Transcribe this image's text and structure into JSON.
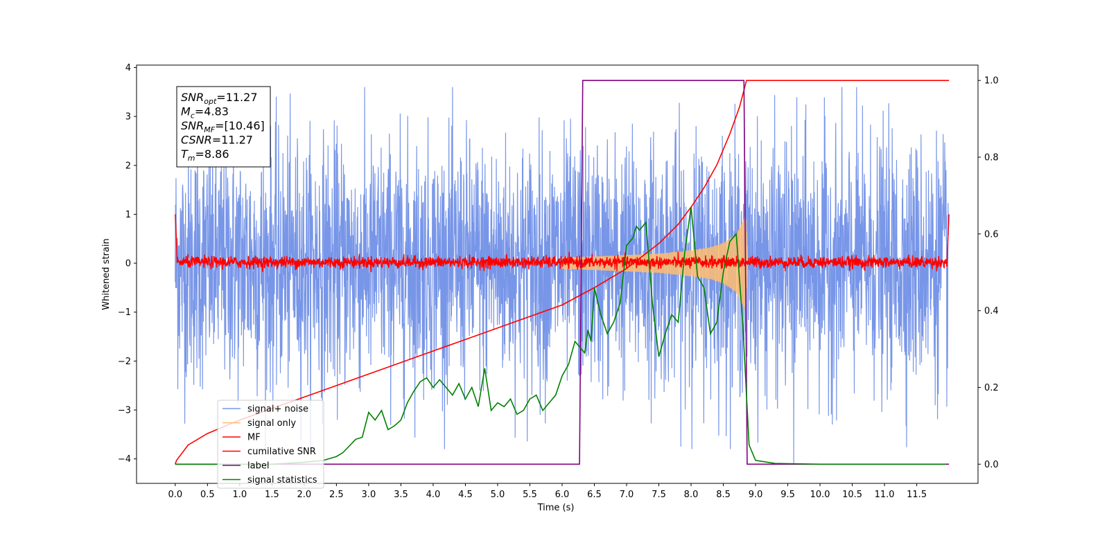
{
  "chart_data": {
    "type": "line",
    "xlabel": "Time (s)",
    "ylabel": "Whitened strain",
    "xlim": [
      -0.6,
      12.45
    ],
    "ylim": [
      -4.5,
      4.05
    ],
    "y2lim": [
      -0.05,
      1.04
    ],
    "x_ticks": [
      0.0,
      0.5,
      1.0,
      1.5,
      2.0,
      2.5,
      3.0,
      3.5,
      4.0,
      4.5,
      5.0,
      5.5,
      6.0,
      6.5,
      7.0,
      7.5,
      8.0,
      8.5,
      9.0,
      9.5,
      10.0,
      10.5,
      11.0,
      11.5
    ],
    "x_tick_labels": [
      "0.0",
      "0.5",
      "1.0",
      "1.5",
      "2.0",
      "2.5",
      "3.0",
      "3.5",
      "4.0",
      "4.5",
      "5.0",
      "5.5",
      "6.0",
      "6.5",
      "7.0",
      "7.5",
      "8.0",
      "8.5",
      "9.0",
      "9.5",
      "10.0",
      "10.5",
      "11.0",
      "11.5"
    ],
    "y_ticks": [
      4,
      3,
      2,
      1,
      0,
      -1,
      -2,
      -3,
      -4
    ],
    "y_tick_labels": [
      "4",
      "3",
      "2",
      "1",
      "0",
      "−1",
      "−2",
      "−3",
      "−4"
    ],
    "y2_ticks": [
      1.0,
      0.8,
      0.6,
      0.4,
      0.2,
      0.0
    ],
    "y2_tick_labels": [
      "1.0",
      "0.8",
      "0.6",
      "0.4",
      "0.2",
      "0.0"
    ],
    "grid": false,
    "legend_position": "lower-left",
    "stats_box": [
      {
        "sym": "SNR",
        "sub": "opt",
        "value": "=11.27"
      },
      {
        "sym": "M",
        "sub": "c",
        "value": "=4.83"
      },
      {
        "sym": "SNR",
        "sub": "MF",
        "value": "=[10.46]"
      },
      {
        "sym": "CSNR",
        "sub": "",
        "value": "=11.27"
      },
      {
        "sym": "T",
        "sub": "m",
        "value": "=8.86"
      }
    ],
    "series": [
      {
        "name": "signal+ noise",
        "axis": "left",
        "color": "#7896e8",
        "description": "noisy strain spanning 0.0-11.99 s, amplitude mostly within -2.6..2.6 with spikes to about 3.6 and -4.1"
      },
      {
        "name": "signal only",
        "axis": "left",
        "color": "#ffbd70",
        "envelope": {
          "x": [
            6.0,
            6.5,
            7.0,
            7.5,
            8.0,
            8.3,
            8.5,
            8.7,
            8.85,
            8.88
          ],
          "amp": [
            0.12,
            0.14,
            0.17,
            0.2,
            0.27,
            0.33,
            0.42,
            0.6,
            1.0,
            0.0
          ]
        }
      },
      {
        "name": "MF",
        "axis": "left",
        "color": "#ff0000",
        "description": "matched filter output near 0 with noise of about +/-0.15, edge spikes to 1.0 at t=0.0 and 12.0"
      },
      {
        "name": "cumilative SNR",
        "axis": "right",
        "color": "#ff0000",
        "x": [
          0.0,
          0.02,
          0.2,
          0.5,
          1.0,
          1.5,
          2.0,
          2.5,
          3.0,
          3.5,
          4.0,
          4.5,
          5.0,
          5.5,
          6.0,
          6.5,
          7.0,
          7.5,
          7.8,
          8.0,
          8.2,
          8.4,
          8.6,
          8.75,
          8.86,
          12.0
        ],
        "y": [
          0.0,
          0.01,
          0.05,
          0.08,
          0.115,
          0.145,
          0.175,
          0.205,
          0.235,
          0.265,
          0.295,
          0.325,
          0.355,
          0.385,
          0.415,
          0.46,
          0.51,
          0.575,
          0.625,
          0.67,
          0.72,
          0.78,
          0.86,
          0.93,
          1.0,
          1.0
        ]
      },
      {
        "name": "label",
        "axis": "right",
        "color": "#800080",
        "x": [
          0.0,
          6.27,
          6.32,
          8.82,
          8.87,
          12.0
        ],
        "y": [
          0.0,
          0.0,
          1.0,
          1.0,
          0.0,
          0.0
        ]
      },
      {
        "name": "signal statistics",
        "axis": "right",
        "color": "#008000",
        "x": [
          0.0,
          0.5,
          1.0,
          1.5,
          2.0,
          2.3,
          2.5,
          2.6,
          2.8,
          2.9,
          3.0,
          3.1,
          3.2,
          3.3,
          3.4,
          3.5,
          3.6,
          3.7,
          3.8,
          3.9,
          4.0,
          4.1,
          4.2,
          4.3,
          4.4,
          4.5,
          4.6,
          4.7,
          4.8,
          4.9,
          5.0,
          5.1,
          5.2,
          5.3,
          5.4,
          5.5,
          5.6,
          5.7,
          5.8,
          5.9,
          6.0,
          6.1,
          6.2,
          6.3,
          6.35,
          6.4,
          6.45,
          6.5,
          6.6,
          6.7,
          6.8,
          6.9,
          7.0,
          7.1,
          7.15,
          7.2,
          7.3,
          7.4,
          7.5,
          7.6,
          7.7,
          7.8,
          7.9,
          8.0,
          8.1,
          8.2,
          8.3,
          8.4,
          8.5,
          8.6,
          8.7,
          8.8,
          8.9,
          9.0,
          9.3,
          10.0,
          11.0,
          11.95
        ],
        "y": [
          0.0,
          0.0,
          0.0,
          0.0,
          0.005,
          0.01,
          0.02,
          0.03,
          0.065,
          0.07,
          0.135,
          0.115,
          0.14,
          0.09,
          0.1,
          0.115,
          0.16,
          0.19,
          0.215,
          0.225,
          0.2,
          0.22,
          0.2,
          0.18,
          0.21,
          0.17,
          0.2,
          0.15,
          0.25,
          0.14,
          0.16,
          0.15,
          0.17,
          0.13,
          0.14,
          0.17,
          0.18,
          0.14,
          0.16,
          0.18,
          0.23,
          0.26,
          0.32,
          0.3,
          0.29,
          0.35,
          0.32,
          0.46,
          0.39,
          0.34,
          0.37,
          0.42,
          0.57,
          0.59,
          0.62,
          0.61,
          0.63,
          0.42,
          0.28,
          0.34,
          0.39,
          0.37,
          0.55,
          0.67,
          0.49,
          0.46,
          0.34,
          0.37,
          0.5,
          0.58,
          0.6,
          0.37,
          0.05,
          0.01,
          0.002,
          0.0,
          0.0,
          0.0
        ]
      }
    ]
  }
}
